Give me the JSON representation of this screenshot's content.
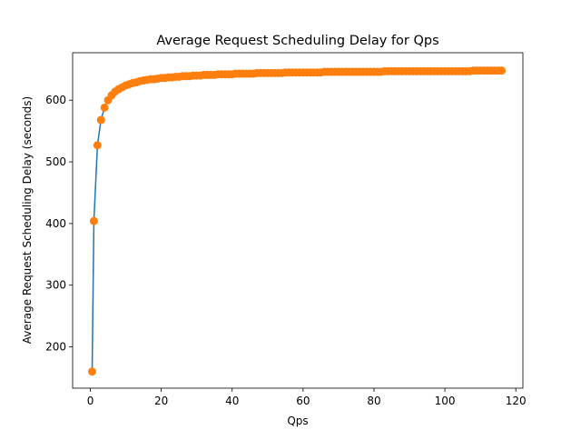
{
  "chart_data": {
    "type": "line",
    "title": "Average Request Scheduling Delay for Qps",
    "xlabel": "Qps",
    "ylabel": "Average Request Scheduling Delay (seconds)",
    "xlim": [
      -5,
      122
    ],
    "ylim": [
      133,
      677
    ],
    "xticks": [
      0,
      20,
      40,
      60,
      80,
      100,
      120
    ],
    "yticks": [
      200,
      300,
      400,
      500,
      600
    ],
    "grid": false,
    "series": [
      {
        "color": "#1f77b4",
        "style": "line",
        "x": [
          0.5,
          1,
          2,
          3,
          4,
          5,
          6,
          7,
          8,
          9,
          10,
          11,
          12,
          13,
          14,
          15,
          16,
          17,
          18,
          19,
          20,
          21,
          22,
          23,
          24,
          25,
          26,
          27,
          28,
          29,
          30,
          31,
          32,
          33,
          34,
          35,
          36,
          37,
          38,
          39,
          40,
          41,
          42,
          43,
          44,
          45,
          46,
          47,
          48,
          49,
          50,
          51,
          52,
          53,
          54,
          55,
          56,
          57,
          58,
          59,
          60,
          61,
          62,
          63,
          64,
          65,
          66,
          67,
          68,
          69,
          70,
          71,
          72,
          73,
          74,
          75,
          76,
          77,
          78,
          79,
          80,
          81,
          82,
          83,
          84,
          85,
          86,
          87,
          88,
          89,
          90,
          91,
          92,
          93,
          94,
          95,
          96,
          97,
          98,
          99,
          100,
          101,
          102,
          103,
          104,
          105,
          106,
          107,
          108,
          109,
          110,
          111,
          112,
          113,
          114,
          115,
          116
        ],
        "y": [
          160,
          404,
          527,
          568,
          588,
          600,
          608,
          614,
          618,
          621,
          624,
          626,
          628,
          629,
          631,
          632,
          633,
          634,
          634,
          635,
          636,
          636,
          637,
          637,
          638,
          638,
          639,
          639,
          639,
          640,
          640,
          640,
          641,
          641,
          641,
          641,
          642,
          642,
          642,
          642,
          642,
          643,
          643,
          643,
          643,
          643,
          643,
          644,
          644,
          644,
          644,
          644,
          644,
          644,
          644,
          645,
          645,
          645,
          645,
          645,
          645,
          645,
          645,
          645,
          645,
          645,
          646,
          646,
          646,
          646,
          646,
          646,
          646,
          646,
          646,
          646,
          646,
          646,
          646,
          646,
          646,
          646,
          646,
          647,
          647,
          647,
          647,
          647,
          647,
          647,
          647,
          647,
          647,
          647,
          647,
          647,
          647,
          647,
          647,
          647,
          647,
          647,
          647,
          647,
          647,
          647,
          647,
          647,
          648,
          648,
          648,
          648,
          648,
          648,
          648,
          648,
          648
        ]
      },
      {
        "color": "#ff7f0e",
        "style": "markers",
        "x": [
          0.5,
          1,
          2,
          3,
          4,
          5,
          6,
          7,
          8,
          9,
          10,
          11,
          12,
          13,
          14,
          15,
          16,
          17,
          18,
          19,
          20,
          21,
          22,
          23,
          24,
          25,
          26,
          27,
          28,
          29,
          30,
          31,
          32,
          33,
          34,
          35,
          36,
          37,
          38,
          39,
          40,
          41,
          42,
          43,
          44,
          45,
          46,
          47,
          48,
          49,
          50,
          51,
          52,
          53,
          54,
          55,
          56,
          57,
          58,
          59,
          60,
          61,
          62,
          63,
          64,
          65,
          66,
          67,
          68,
          69,
          70,
          71,
          72,
          73,
          74,
          75,
          76,
          77,
          78,
          79,
          80,
          81,
          82,
          83,
          84,
          85,
          86,
          87,
          88,
          89,
          90,
          91,
          92,
          93,
          94,
          95,
          96,
          97,
          98,
          99,
          100,
          101,
          102,
          103,
          104,
          105,
          106,
          107,
          108,
          109,
          110,
          111,
          112,
          113,
          114,
          115,
          116
        ],
        "y": [
          160,
          404,
          527,
          568,
          588,
          600,
          608,
          614,
          618,
          621,
          624,
          626,
          628,
          629,
          631,
          632,
          633,
          634,
          634,
          635,
          636,
          636,
          637,
          637,
          638,
          638,
          639,
          639,
          639,
          640,
          640,
          640,
          641,
          641,
          641,
          641,
          642,
          642,
          642,
          642,
          642,
          643,
          643,
          643,
          643,
          643,
          643,
          644,
          644,
          644,
          644,
          644,
          644,
          644,
          644,
          645,
          645,
          645,
          645,
          645,
          645,
          645,
          645,
          645,
          645,
          645,
          646,
          646,
          646,
          646,
          646,
          646,
          646,
          646,
          646,
          646,
          646,
          646,
          646,
          646,
          646,
          646,
          646,
          647,
          647,
          647,
          647,
          647,
          647,
          647,
          647,
          647,
          647,
          647,
          647,
          647,
          647,
          647,
          647,
          647,
          647,
          647,
          647,
          647,
          647,
          647,
          647,
          647,
          648,
          648,
          648,
          648,
          648,
          648,
          648,
          648,
          648
        ]
      }
    ]
  }
}
